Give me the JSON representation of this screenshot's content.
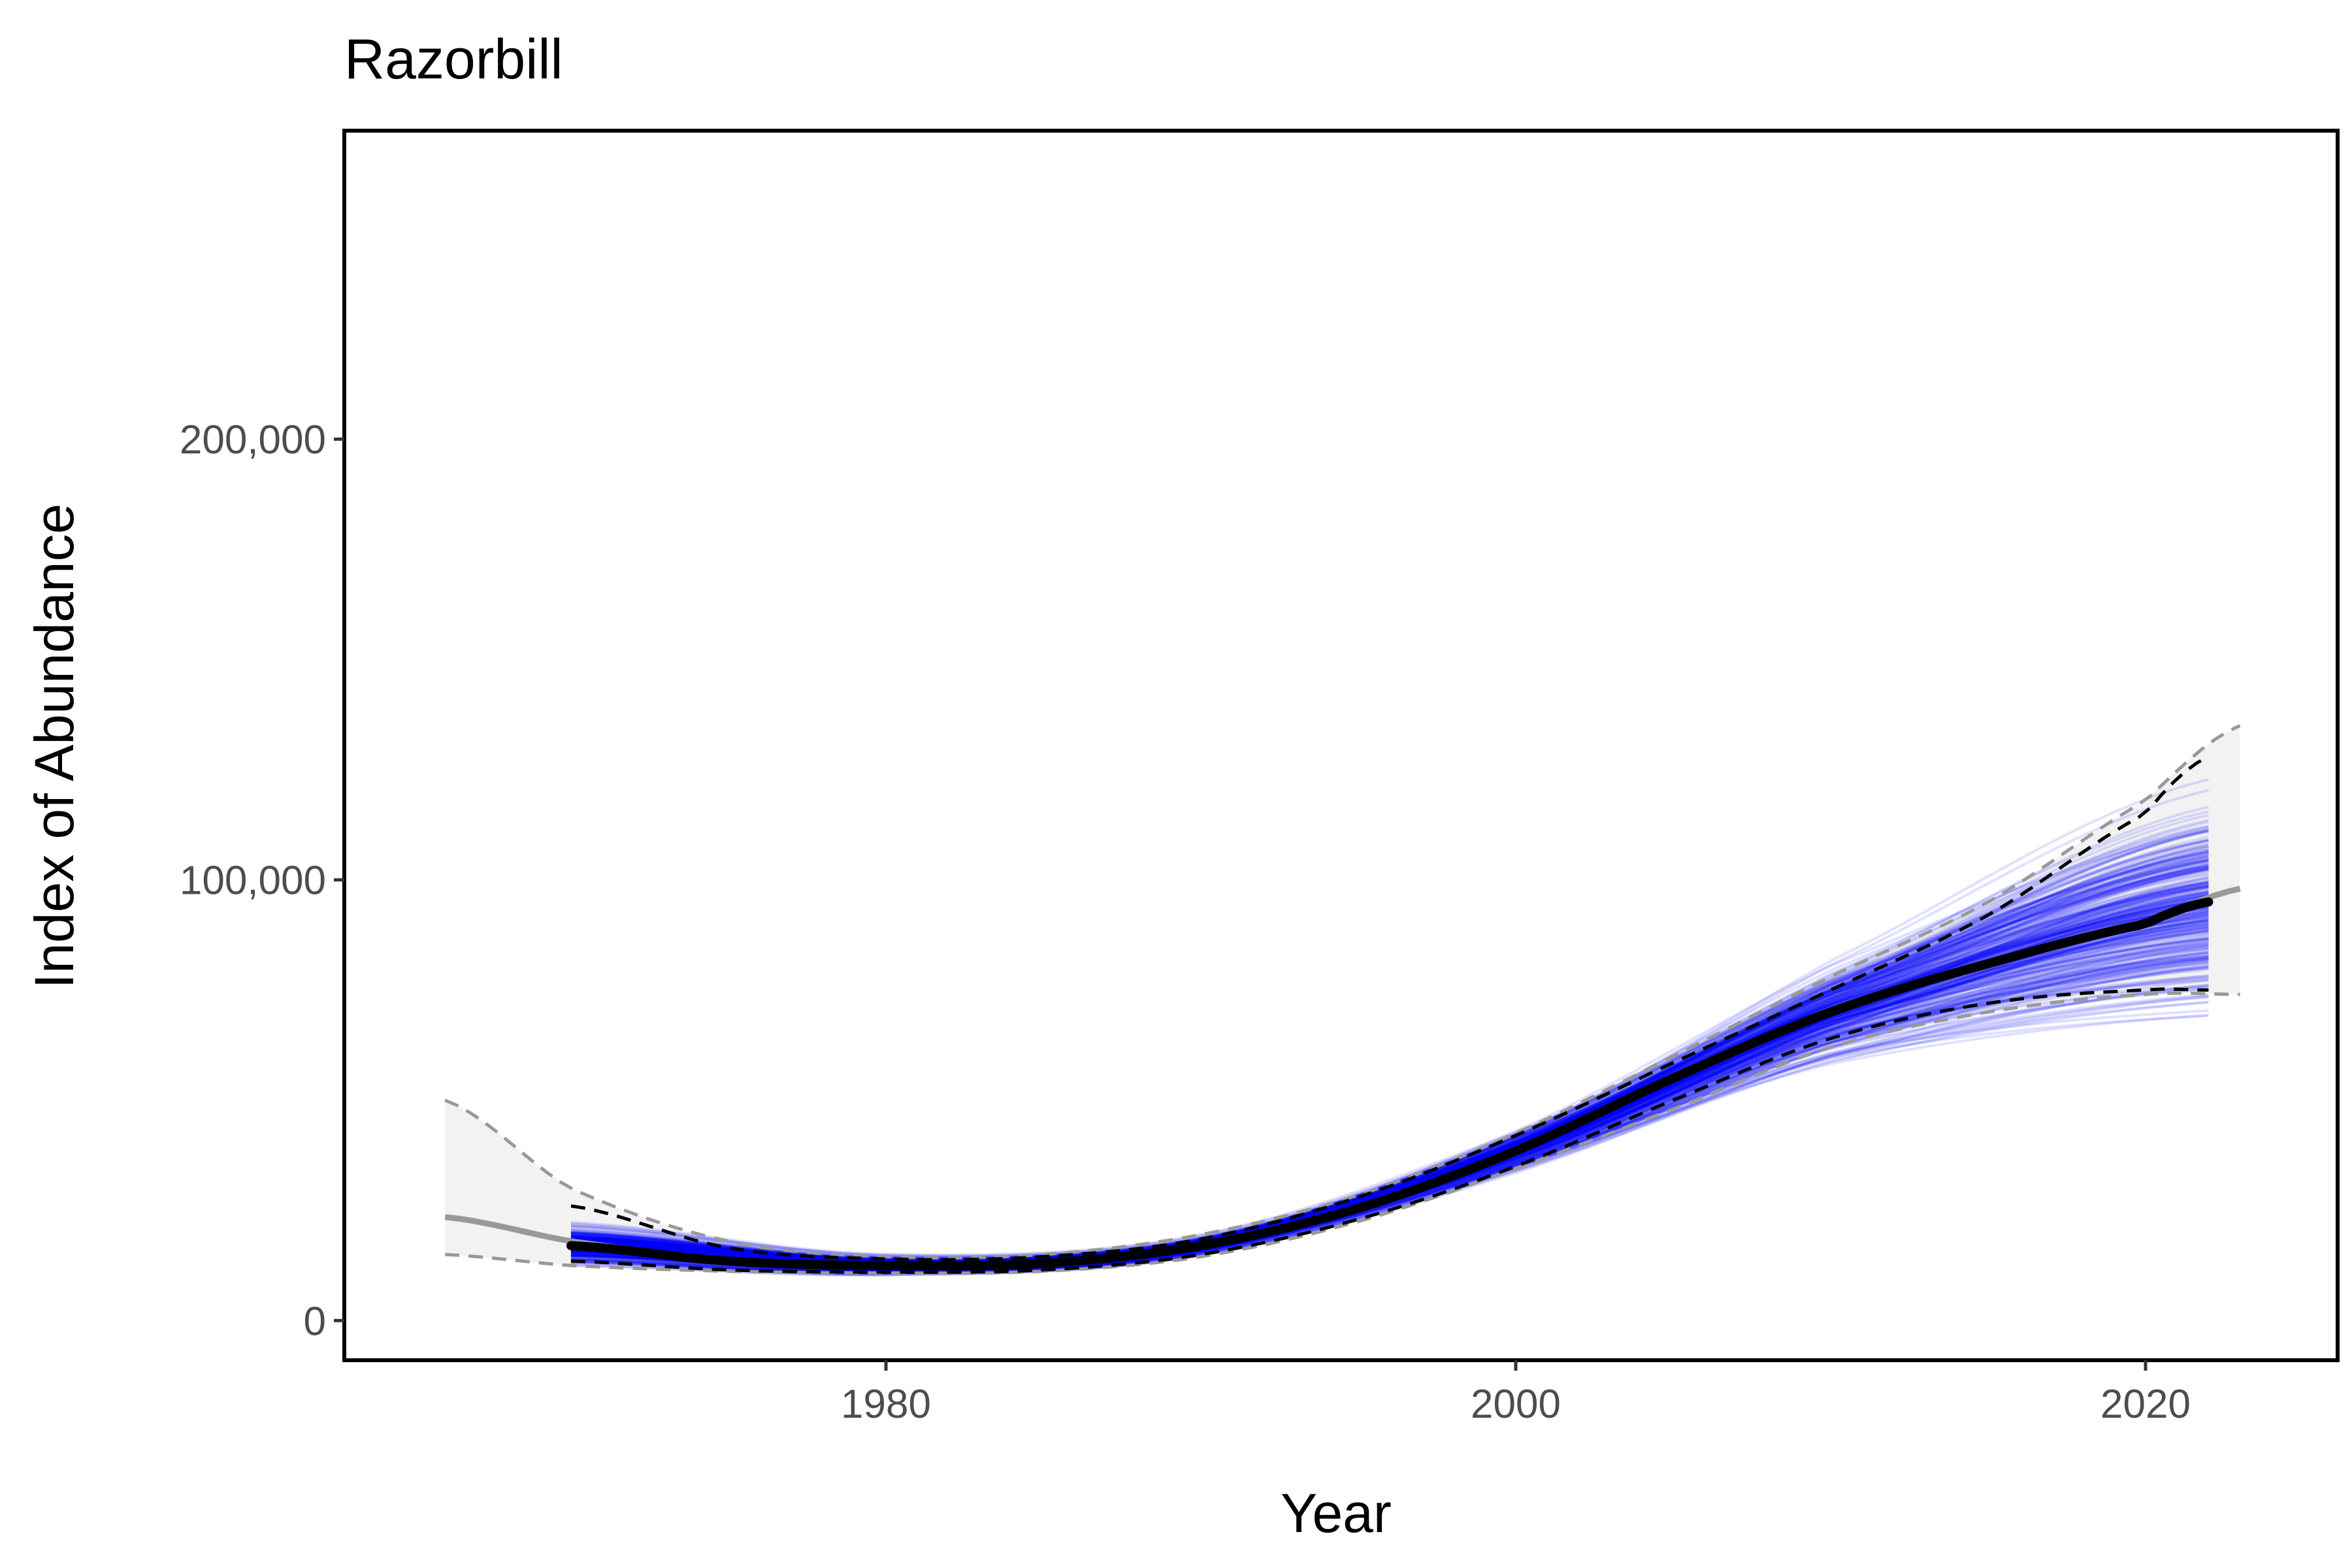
{
  "chart_data": {
    "type": "line",
    "title": "Razorbill",
    "xlabel": "Year",
    "ylabel": "Index of Abundance",
    "xlim": [
      1962.8,
      1968.0
    ],
    "x_range": [
      1962.8,
      2026.1
    ],
    "ylim": [
      -9000,
      270000
    ],
    "x_ticks": [
      1980,
      2000,
      2020
    ],
    "x_tick_labels": [
      "1980",
      "2000",
      "2020"
    ],
    "y_ticks": [
      0,
      100000,
      200000
    ],
    "y_tick_labels": [
      "0",
      "100,000",
      "200,000"
    ],
    "grid": false,
    "legend": "none",
    "colors": {
      "samples": "#0000ff",
      "mean": "#000000",
      "extrapolation": "#999999",
      "extrapolation_ribbon": "#f2f2f2",
      "frame": "#000000"
    },
    "series": [
      {
        "x": [
          1966,
          1970,
          1975,
          1980,
          1985,
          1990,
          1995,
          2000,
          2005,
          2010,
          2015,
          2020,
          2023
        ],
        "values": [
          23500,
          18000,
          13800,
          12500,
          13000,
          17000,
          25500,
          38500,
          55000,
          70000,
          81000,
          90000,
          98000
        ],
        "style": "grey-extension"
      },
      {
        "x": [
          1966,
          1970,
          1975,
          1980,
          1985,
          1990,
          1995,
          2000,
          2005,
          2010,
          2015,
          2020,
          2023
        ],
        "values": [
          50000,
          30000,
          18000,
          14500,
          15000,
          19500,
          28500,
          42500,
          60000,
          78000,
          95000,
          118000,
          135000
        ],
        "style": "grey-upper-dashed"
      },
      {
        "x": [
          1966,
          1970,
          1975,
          1980,
          1985,
          1990,
          1995,
          2000,
          2005,
          2010,
          2015,
          2020,
          2023
        ],
        "values": [
          15000,
          12500,
          11200,
          10800,
          11200,
          14500,
          22500,
          34500,
          48000,
          62000,
          70000,
          74000,
          74000
        ],
        "style": "grey-lower-dashed"
      },
      {
        "x": [
          1970,
          1975,
          1980,
          1985,
          1990,
          1995,
          2000,
          2005,
          2010,
          2015,
          2020,
          2022
        ],
        "values": [
          17000,
          13500,
          12500,
          13000,
          17000,
          25500,
          38500,
          55000,
          70000,
          81000,
          90000,
          95000
        ],
        "style": "mean"
      },
      {
        "x": [
          1970,
          1975,
          1980,
          1985,
          1990,
          1995,
          2000,
          2005,
          2010,
          2015,
          2020,
          2022
        ],
        "values": [
          26000,
          16500,
          14000,
          14500,
          18500,
          28000,
          42000,
          58500,
          75000,
          92000,
          115000,
          128000
        ],
        "style": "upper-dashed"
      },
      {
        "x": [
          1970,
          1975,
          1980,
          1985,
          1990,
          1995,
          2000,
          2005,
          2010,
          2015,
          2020,
          2022
        ],
        "values": [
          13500,
          11500,
          11000,
          11500,
          15000,
          23000,
          35000,
          50000,
          64000,
          72000,
          75000,
          75000
        ],
        "style": "lower-dashed"
      }
    ],
    "sample_trajectories": {
      "count": 300,
      "x_start": 1970,
      "x_end": 2022,
      "range_at_start": [
        12000,
        38000
      ],
      "range_at_end": [
        65000,
        150000
      ]
    }
  }
}
